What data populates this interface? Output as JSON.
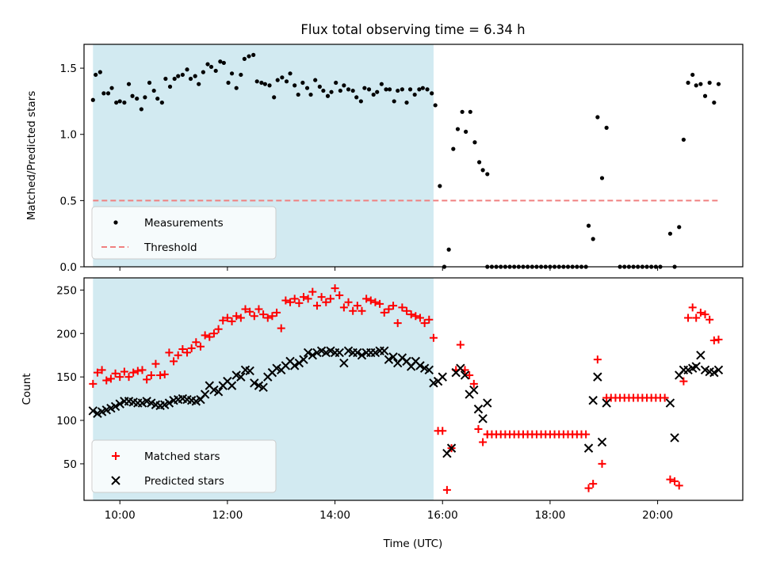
{
  "figure": {
    "title": "Flux total observing time = 6.34 h",
    "xlabel": "Time (UTC)"
  },
  "chart_data": [
    {
      "type": "scatter",
      "panel": "top",
      "ylabel": "Matched/Predicted stars",
      "xlim": [
        "09:20",
        "21:35"
      ],
      "ylim": [
        0,
        1.68
      ],
      "y_ticks": [
        "0.0",
        "0.5",
        "1.0",
        "1.5"
      ],
      "x_ticks": [
        "10:00",
        "12:00",
        "14:00",
        "16:00",
        "18:00",
        "20:00"
      ],
      "shaded_span": [
        "09:30",
        "15:50"
      ],
      "shaded_color": "#add8e6",
      "legend_location": "lower left",
      "series": [
        {
          "name": "Measurements",
          "marker": "dot",
          "color": "#000000",
          "x": [
            "09:30",
            "09:33",
            "09:38",
            "09:42",
            "09:47",
            "09:51",
            "09:56",
            "10:00",
            "10:05",
            "10:10",
            "10:14",
            "10:19",
            "10:24",
            "10:28",
            "10:33",
            "10:38",
            "10:42",
            "10:47",
            "10:51",
            "10:56",
            "11:01",
            "11:05",
            "11:10",
            "11:15",
            "11:19",
            "11:24",
            "11:28",
            "11:33",
            "11:38",
            "11:42",
            "11:47",
            "11:52",
            "11:56",
            "12:01",
            "12:05",
            "12:10",
            "12:15",
            "12:19",
            "12:24",
            "12:29",
            "12:33",
            "12:38",
            "12:42",
            "12:47",
            "12:52",
            "12:56",
            "13:01",
            "13:06",
            "13:10",
            "13:15",
            "13:19",
            "13:24",
            "13:29",
            "13:33",
            "13:38",
            "13:43",
            "13:47",
            "13:52",
            "13:56",
            "14:01",
            "14:06",
            "14:10",
            "14:15",
            "14:20",
            "14:24",
            "14:29",
            "14:33",
            "14:38",
            "14:43",
            "14:47",
            "14:52",
            "14:57",
            "15:01",
            "15:06",
            "15:10",
            "15:15",
            "15:20",
            "15:24",
            "15:29",
            "15:34",
            "15:38",
            "15:43",
            "15:48",
            "15:52",
            "15:57",
            "16:02",
            "16:07",
            "16:12",
            "16:17",
            "16:22",
            "16:26",
            "16:31",
            "16:36",
            "16:41",
            "16:45",
            "16:50",
            "18:43",
            "18:48",
            "18:53",
            "18:58",
            "19:03",
            "20:14",
            "20:19",
            "20:24",
            "20:29",
            "20:34",
            "20:39",
            "20:43",
            "20:48",
            "20:53",
            "20:58",
            "21:03",
            "21:08"
          ],
          "y": [
            1.26,
            1.45,
            1.47,
            1.31,
            1.31,
            1.35,
            1.24,
            1.25,
            1.24,
            1.38,
            1.29,
            1.27,
            1.19,
            1.28,
            1.39,
            1.33,
            1.27,
            1.24,
            1.42,
            1.36,
            1.42,
            1.44,
            1.45,
            1.49,
            1.42,
            1.44,
            1.38,
            1.47,
            1.53,
            1.51,
            1.48,
            1.55,
            1.54,
            1.39,
            1.46,
            1.35,
            1.45,
            1.57,
            1.59,
            1.6,
            1.4,
            1.39,
            1.38,
            1.37,
            1.28,
            1.41,
            1.43,
            1.4,
            1.46,
            1.37,
            1.3,
            1.39,
            1.35,
            1.3,
            1.41,
            1.36,
            1.33,
            1.29,
            1.32,
            1.39,
            1.33,
            1.37,
            1.34,
            1.33,
            1.28,
            1.25,
            1.35,
            1.34,
            1.3,
            1.32,
            1.38,
            1.34,
            1.34,
            1.25,
            1.33,
            1.34,
            1.24,
            1.34,
            1.3,
            1.34,
            1.35,
            1.34,
            1.31,
            1.22,
            0.61,
            0.0,
            0.13,
            0.89,
            1.04,
            1.17,
            1.02,
            1.17,
            0.94,
            0.79,
            0.73,
            0.7,
            0.31,
            0.21,
            1.13,
            0.67,
            1.05,
            0.25,
            0.0,
            0.3,
            0.96,
            1.39,
            1.45,
            1.37,
            1.38,
            1.29,
            1.39,
            1.24,
            1.38
          ],
          "zero_run": [
            [
              "16:50",
              "18:20"
            ],
            [
              "18:25",
              "18:43"
            ],
            [
              "19:18",
              "20:05"
            ]
          ]
        },
        {
          "name": "Threshold",
          "marker": "dashed-line",
          "color": "#f08080",
          "x": [
            "09:30",
            "21:08"
          ],
          "y": [
            0.5,
            0.5
          ]
        }
      ]
    },
    {
      "type": "scatter",
      "panel": "bottom",
      "ylabel": "Count",
      "xlim": [
        "09:20",
        "21:35"
      ],
      "ylim": [
        8,
        264
      ],
      "y_ticks": [
        "50",
        "100",
        "150",
        "200",
        "250"
      ],
      "x_ticks": [
        "10:00",
        "12:00",
        "14:00",
        "16:00",
        "18:00",
        "20:00"
      ],
      "shaded_span": [
        "09:30",
        "15:50"
      ],
      "shaded_color": "#add8e6",
      "legend_location": "lower left",
      "series": [
        {
          "name": "Matched stars",
          "marker": "plus",
          "color": "#ff0000",
          "x": [
            "09:30",
            "09:35",
            "09:40",
            "09:45",
            "09:50",
            "09:55",
            "10:00",
            "10:05",
            "10:10",
            "10:15",
            "10:20",
            "10:25",
            "10:30",
            "10:35",
            "10:40",
            "10:45",
            "10:50",
            "10:55",
            "11:00",
            "11:05",
            "11:10",
            "11:15",
            "11:20",
            "11:25",
            "11:30",
            "11:35",
            "11:40",
            "11:45",
            "11:50",
            "11:55",
            "12:00",
            "12:05",
            "12:10",
            "12:15",
            "12:20",
            "12:25",
            "12:30",
            "12:35",
            "12:40",
            "12:45",
            "12:50",
            "12:55",
            "13:00",
            "13:05",
            "13:10",
            "13:15",
            "13:20",
            "13:25",
            "13:30",
            "13:35",
            "13:40",
            "13:45",
            "13:50",
            "13:55",
            "14:00",
            "14:05",
            "14:10",
            "14:15",
            "14:20",
            "14:25",
            "14:30",
            "14:35",
            "14:40",
            "14:45",
            "14:50",
            "14:55",
            "15:00",
            "15:05",
            "15:10",
            "15:15",
            "15:20",
            "15:25",
            "15:30",
            "15:35",
            "15:40",
            "15:45",
            "15:50",
            "15:55",
            "16:00",
            "16:05",
            "16:10",
            "16:15",
            "16:20",
            "16:25",
            "16:30",
            "16:35",
            "16:40",
            "16:45",
            "16:50",
            "18:43",
            "18:48",
            "18:53",
            "18:58",
            "19:03",
            "20:14",
            "20:19",
            "20:24",
            "20:29",
            "20:34",
            "20:39",
            "20:43",
            "20:48",
            "20:53",
            "20:58",
            "21:03",
            "21:08"
          ],
          "y": [
            142,
            155,
            158,
            146,
            148,
            154,
            150,
            156,
            150,
            155,
            157,
            158,
            147,
            152,
            165,
            152,
            153,
            178,
            168,
            175,
            182,
            178,
            183,
            190,
            185,
            198,
            196,
            200,
            205,
            215,
            218,
            214,
            220,
            218,
            228,
            225,
            220,
            228,
            222,
            218,
            220,
            224,
            206,
            238,
            236,
            240,
            235,
            242,
            240,
            248,
            232,
            242,
            236,
            240,
            252,
            244,
            230,
            236,
            226,
            232,
            226,
            240,
            238,
            236,
            234,
            224,
            228,
            232,
            212,
            230,
            226,
            222,
            220,
            218,
            212,
            216,
            195,
            88,
            88,
            20,
            68,
            158,
            187,
            158,
            152,
            142,
            90,
            75,
            84,
            22,
            27,
            170,
            50,
            126,
            32,
            30,
            25,
            145,
            218,
            230,
            218,
            224,
            222,
            216,
            192,
            193
          ],
          "flat_runs": [
            {
              "value": 84,
              "x": [
                "16:50",
                "18:40"
              ]
            },
            {
              "value": 126,
              "x": [
                "19:08",
                "20:10"
              ]
            }
          ]
        },
        {
          "name": "Predicted stars",
          "marker": "x",
          "color": "#000000",
          "x": [
            "09:30",
            "09:35",
            "09:40",
            "09:45",
            "09:50",
            "09:55",
            "10:00",
            "10:05",
            "10:10",
            "10:15",
            "10:20",
            "10:25",
            "10:30",
            "10:35",
            "10:40",
            "10:45",
            "10:50",
            "10:55",
            "11:00",
            "11:05",
            "11:10",
            "11:15",
            "11:20",
            "11:25",
            "11:30",
            "11:35",
            "11:40",
            "11:45",
            "11:50",
            "11:55",
            "12:00",
            "12:05",
            "12:10",
            "12:15",
            "12:20",
            "12:25",
            "12:30",
            "12:35",
            "12:40",
            "12:45",
            "12:50",
            "12:55",
            "13:00",
            "13:05",
            "13:10",
            "13:15",
            "13:20",
            "13:25",
            "13:30",
            "13:35",
            "13:40",
            "13:45",
            "13:50",
            "13:55",
            "14:00",
            "14:05",
            "14:10",
            "14:15",
            "14:20",
            "14:25",
            "14:30",
            "14:35",
            "14:40",
            "14:45",
            "14:50",
            "14:55",
            "15:00",
            "15:05",
            "15:10",
            "15:15",
            "15:20",
            "15:25",
            "15:30",
            "15:35",
            "15:40",
            "15:45",
            "15:50",
            "15:55",
            "16:00",
            "16:05",
            "16:10",
            "16:15",
            "16:20",
            "16:25",
            "16:30",
            "16:35",
            "16:40",
            "16:45",
            "16:50",
            "18:43",
            "18:48",
            "18:53",
            "18:58",
            "19:03",
            "20:14",
            "20:19",
            "20:24",
            "20:29",
            "20:34",
            "20:39",
            "20:43",
            "20:48",
            "20:53",
            "20:58",
            "21:03",
            "21:08"
          ],
          "y": [
            111,
            108,
            110,
            112,
            114,
            116,
            119,
            122,
            122,
            121,
            120,
            120,
            122,
            120,
            118,
            117,
            118,
            120,
            123,
            124,
            125,
            124,
            123,
            122,
            124,
            130,
            140,
            135,
            133,
            140,
            145,
            140,
            152,
            150,
            158,
            157,
            143,
            140,
            138,
            150,
            155,
            160,
            158,
            163,
            168,
            163,
            166,
            170,
            178,
            175,
            178,
            180,
            178,
            180,
            178,
            178,
            166,
            180,
            178,
            178,
            175,
            178,
            178,
            178,
            180,
            180,
            170,
            173,
            166,
            172,
            168,
            162,
            168,
            163,
            160,
            158,
            143,
            145,
            150,
            62,
            68,
            155,
            160,
            152,
            130,
            135,
            113,
            102,
            120,
            68,
            123,
            150,
            75,
            120,
            120,
            80,
            152,
            158,
            158,
            160,
            162,
            175,
            158,
            156,
            155,
            158
          ]
        }
      ]
    }
  ]
}
